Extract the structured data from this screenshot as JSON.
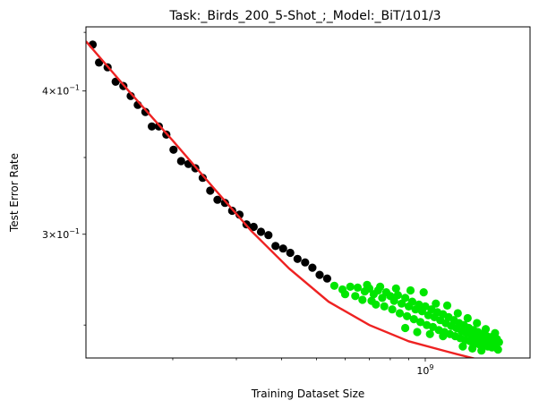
{
  "chart_data": {
    "type": "scatter",
    "title": "Task:_Birds_200_5-Shot_;_Model:_BiT/101/3",
    "xlabel": "Training Dataset Size",
    "ylabel": "Test Error Rate",
    "xscale": "log",
    "yscale": "log",
    "xlim": [
      115000000,
      1950000000
    ],
    "ylim": [
      0.234,
      0.455
    ],
    "grid": false,
    "x_ticks": [
      {
        "value": 1000000000,
        "base": "10",
        "exp": "9"
      }
    ],
    "y_ticks": [
      {
        "value": 0.4,
        "mantissa": "4",
        "base": "10",
        "exp": "−1"
      },
      {
        "value": 0.3,
        "mantissa": "3",
        "base": "10",
        "exp": "−1"
      }
    ],
    "colors": {
      "black": "#000000",
      "green": "#00e600",
      "fit": "#ee2222"
    },
    "series": [
      {
        "color": "#000000",
        "points": [
          [
            120000000,
            0.439
          ],
          [
            125000000,
            0.4235
          ],
          [
            132000000,
            0.4195
          ],
          [
            139000000,
            0.4075
          ],
          [
            146000000,
            0.404
          ],
          [
            153000000,
            0.396
          ],
          [
            160000000,
            0.389
          ],
          [
            168000000,
            0.3835
          ],
          [
            175000000,
            0.3725
          ],
          [
            183000000,
            0.3725
          ],
          [
            192000000,
            0.3665
          ],
          [
            201000000,
            0.3555
          ],
          [
            211000000,
            0.3475
          ],
          [
            221000000,
            0.3455
          ],
          [
            231000000,
            0.3425
          ],
          [
            242000000,
            0.336
          ],
          [
            254000000,
            0.3275
          ],
          [
            266000000,
            0.3215
          ],
          [
            279000000,
            0.3195
          ],
          [
            292000000,
            0.3145
          ],
          [
            306000000,
            0.312
          ],
          [
            320000000,
            0.306
          ],
          [
            335000000,
            0.3045
          ],
          [
            351000000,
            0.3015
          ],
          [
            368000000,
            0.2995
          ],
          [
            385000000,
            0.293
          ],
          [
            404000000,
            0.2915
          ],
          [
            423000000,
            0.289
          ],
          [
            443000000,
            0.2855
          ],
          [
            465000000,
            0.2835
          ],
          [
            487000000,
            0.2805
          ],
          [
            510000000,
            0.2765
          ],
          [
            535000000,
            0.2745
          ]
        ]
      },
      {
        "color": "#00e600",
        "points": [
          [
            560000000,
            0.2705
          ],
          [
            590000000,
            0.2685
          ],
          [
            620000000,
            0.27
          ],
          [
            650000000,
            0.2695
          ],
          [
            680000000,
            0.2675
          ],
          [
            700000000,
            0.269
          ],
          [
            720000000,
            0.266
          ],
          [
            740000000,
            0.268
          ],
          [
            760000000,
            0.264
          ],
          [
            780000000,
            0.267
          ],
          [
            800000000,
            0.265
          ],
          [
            820000000,
            0.2625
          ],
          [
            840000000,
            0.2655
          ],
          [
            860000000,
            0.261
          ],
          [
            880000000,
            0.264
          ],
          [
            900000000,
            0.2595
          ],
          [
            920000000,
            0.262
          ],
          [
            940000000,
            0.258
          ],
          [
            960000000,
            0.2605
          ],
          [
            980000000,
            0.257
          ],
          [
            1000000000,
            0.2595
          ],
          [
            1020000000,
            0.255
          ],
          [
            1040000000,
            0.258
          ],
          [
            1060000000,
            0.254
          ],
          [
            1080000000,
            0.2565
          ],
          [
            1100000000,
            0.2525
          ],
          [
            1120000000,
            0.2555
          ],
          [
            1140000000,
            0.251
          ],
          [
            1160000000,
            0.254
          ],
          [
            1180000000,
            0.2495
          ],
          [
            1200000000,
            0.2525
          ],
          [
            1220000000,
            0.2485
          ],
          [
            1240000000,
            0.251
          ],
          [
            1260000000,
            0.247
          ],
          [
            1280000000,
            0.25
          ],
          [
            1300000000,
            0.246
          ],
          [
            1320000000,
            0.2485
          ],
          [
            1340000000,
            0.245
          ],
          [
            1360000000,
            0.2475
          ],
          [
            1380000000,
            0.244
          ],
          [
            1400000000,
            0.2465
          ],
          [
            1420000000,
            0.243
          ],
          [
            1440000000,
            0.2455
          ],
          [
            1460000000,
            0.2425
          ],
          [
            1480000000,
            0.2445
          ],
          [
            1500000000,
            0.242
          ],
          [
            1520000000,
            0.244
          ],
          [
            1550000000,
            0.241
          ],
          [
            1580000000,
            0.243
          ],
          [
            1600000000,
            0.2415
          ],
          [
            600000000,
            0.266
          ],
          [
            640000000,
            0.265
          ],
          [
            670000000,
            0.263
          ],
          [
            710000000,
            0.2625
          ],
          [
            730000000,
            0.2605
          ],
          [
            770000000,
            0.2595
          ],
          [
            810000000,
            0.258
          ],
          [
            850000000,
            0.256
          ],
          [
            890000000,
            0.2545
          ],
          [
            930000000,
            0.253
          ],
          [
            970000000,
            0.2515
          ],
          [
            1010000000,
            0.25
          ],
          [
            1050000000,
            0.249
          ],
          [
            1090000000,
            0.2475
          ],
          [
            1130000000,
            0.2465
          ],
          [
            1170000000,
            0.2455
          ],
          [
            1210000000,
            0.2445
          ],
          [
            1250000000,
            0.2435
          ],
          [
            1290000000,
            0.2425
          ],
          [
            1330000000,
            0.242
          ],
          [
            1370000000,
            0.241
          ],
          [
            1410000000,
            0.2405
          ],
          [
            1450000000,
            0.24
          ],
          [
            1490000000,
            0.2395
          ],
          [
            1530000000,
            0.239
          ],
          [
            690000000,
            0.271
          ],
          [
            750000000,
            0.27
          ],
          [
            830000000,
            0.269
          ],
          [
            910000000,
            0.268
          ],
          [
            990000000,
            0.267
          ],
          [
            1070000000,
            0.261
          ],
          [
            1150000000,
            0.26
          ],
          [
            1230000000,
            0.256
          ],
          [
            1310000000,
            0.2535
          ],
          [
            1390000000,
            0.251
          ],
          [
            1470000000,
            0.248
          ],
          [
            1560000000,
            0.246
          ],
          [
            1590000000,
            0.238
          ],
          [
            1430000000,
            0.2375
          ],
          [
            1350000000,
            0.2385
          ],
          [
            950000000,
            0.2465
          ],
          [
            1030000000,
            0.2455
          ],
          [
            880000000,
            0.2485
          ],
          [
            1120000000,
            0.2445
          ],
          [
            1270000000,
            0.2395
          ]
        ]
      }
    ],
    "fit_line": {
      "color": "#ee2222",
      "points": [
        [
          115000000,
          0.442
        ],
        [
          150000000,
          0.401
        ],
        [
          200000000,
          0.362
        ],
        [
          260000000,
          0.329
        ],
        [
          330000000,
          0.302
        ],
        [
          420000000,
          0.28
        ],
        [
          540000000,
          0.262
        ],
        [
          700000000,
          0.25
        ],
        [
          900000000,
          0.242
        ],
        [
          1150000000,
          0.237
        ],
        [
          1500000000,
          0.232
        ],
        [
          1950000000,
          0.228
        ]
      ]
    }
  }
}
